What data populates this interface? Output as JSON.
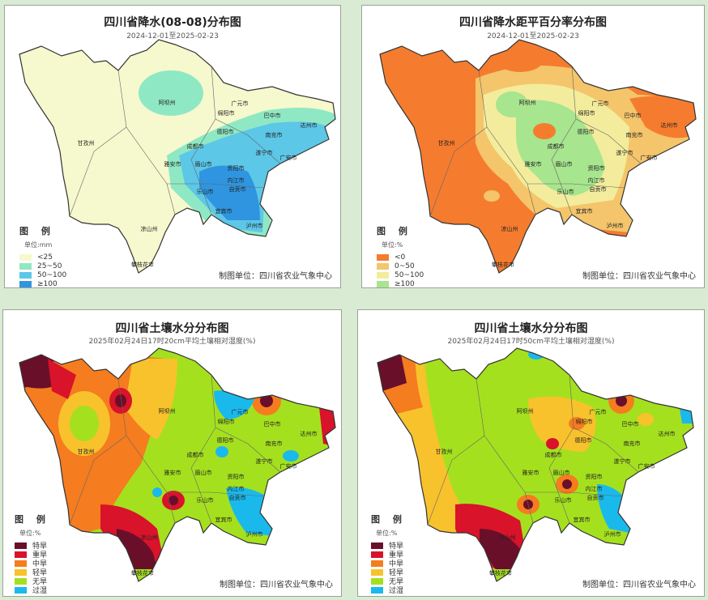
{
  "panels": [
    {
      "title": "四川省降水(08-08)分布图",
      "subtitle": "2024-12-01至2025-02-23",
      "legend_title": "图 例",
      "legend_unit": "单位:mm",
      "legend_items": [
        {
          "label": "<25",
          "color": "#f6f8cd"
        },
        {
          "label": "25~50",
          "color": "#8fe8c4"
        },
        {
          "label": "50~100",
          "color": "#5dc7e8"
        },
        {
          "label": "≥100",
          "color": "#2f95e0"
        }
      ],
      "credit": "制图单位：四川省农业气象中心"
    },
    {
      "title": "四川省降水距平百分率分布图",
      "subtitle": "2024-12-01至2025-02-23",
      "legend_title": "图 例",
      "legend_unit": "单位:%",
      "legend_items": [
        {
          "label": "<0",
          "color": "#f57c2e"
        },
        {
          "label": "0~50",
          "color": "#f4c56b"
        },
        {
          "label": "50~100",
          "color": "#f3ec9c"
        },
        {
          "label": "≥100",
          "color": "#a7e58e"
        }
      ],
      "credit": "制图单位：四川省农业气象中心"
    },
    {
      "title": "四川省土壤水分分布图",
      "subtitle": "2025年02月24日17时20cm平均土壤相对湿度(%)",
      "legend_title": "图 例",
      "legend_unit": "单位:%",
      "legend_items": [
        {
          "label": "特旱",
          "color": "#6a0f2a"
        },
        {
          "label": "重旱",
          "color": "#d8132a"
        },
        {
          "label": "中旱",
          "color": "#f57c1f"
        },
        {
          "label": "轻旱",
          "color": "#f8c22c"
        },
        {
          "label": "无旱",
          "color": "#a5e01f"
        },
        {
          "label": "过湿",
          "color": "#1ab9ec"
        }
      ],
      "credit": "制图单位：四川省农业气象中心"
    },
    {
      "title": "四川省土壤水分分布图",
      "subtitle": "2025年02月24日17时50cm平均土壤相对湿度(%)",
      "legend_title": "图 例",
      "legend_unit": "单位:%",
      "legend_items": [
        {
          "label": "特旱",
          "color": "#6a0f2a"
        },
        {
          "label": "重旱",
          "color": "#d8132a"
        },
        {
          "label": "中旱",
          "color": "#f57c1f"
        },
        {
          "label": "轻旱",
          "color": "#f8c22c"
        },
        {
          "label": "无旱",
          "color": "#a5e01f"
        },
        {
          "label": "过湿",
          "color": "#1ab9ec"
        }
      ],
      "credit": "制图单位：四川省农业气象中心"
    }
  ],
  "cities": [
    "阿坝州",
    "广元市",
    "绵阳市",
    "德阳市",
    "巴中市",
    "达州市",
    "南充市",
    "甘孜州",
    "成都市",
    "遂宁市",
    "广安市",
    "雅安市",
    "眉山市",
    "资阳市",
    "内江市",
    "乐山市",
    "自贡市",
    "宜宾市",
    "泸州市",
    "凉山州",
    "攀枝花市"
  ]
}
